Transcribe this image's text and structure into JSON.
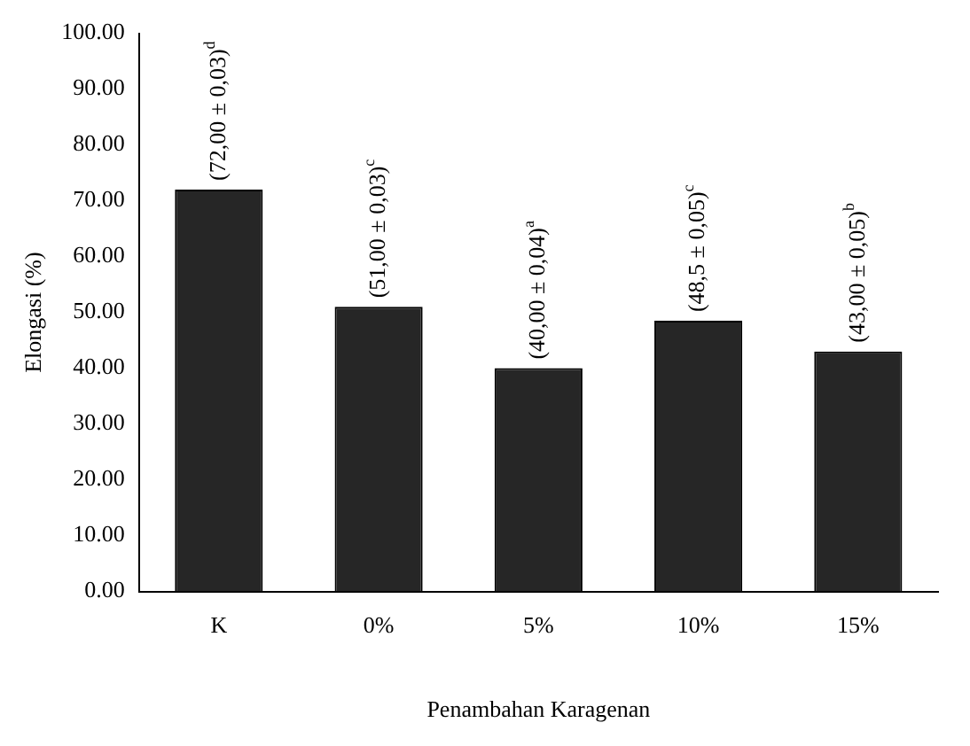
{
  "chart_data": {
    "type": "bar",
    "xlabel": "Penambahan Karagenan",
    "ylabel": "Elongasi (%)",
    "categories": [
      "K",
      "0%",
      "5%",
      "10%",
      "15%"
    ],
    "values": [
      72,
      51,
      40,
      48.5,
      43
    ],
    "color": "#262626",
    "value_labels": [
      "(72,00 ± 0,03)$^{d}$",
      "(51,00 ± 0,03)$^{c}$",
      "(40,00 ± 0,04)$^{a}$",
      "(48,5 ± 0,05)$^{c}$",
      "(43,00 ± 0,05)$^{b}$"
    ],
    "ylim": [
      0,
      100
    ],
    "yticks": [
      {
        "value": 0,
        "label": "0.00"
      },
      {
        "value": 10,
        "label": "10.00"
      },
      {
        "value": 20,
        "label": "20.00"
      },
      {
        "value": 30,
        "label": "30.00"
      },
      {
        "value": 40,
        "label": "40.00"
      },
      {
        "value": 50,
        "label": "50.00"
      },
      {
        "value": 60,
        "label": "60.00"
      },
      {
        "value": 70,
        "label": "70.00"
      },
      {
        "value": 80,
        "label": "80.00"
      },
      {
        "value": 90,
        "label": "90.00"
      },
      {
        "value": 100,
        "label": "100.00"
      }
    ],
    "grid": false,
    "legend": false
  }
}
